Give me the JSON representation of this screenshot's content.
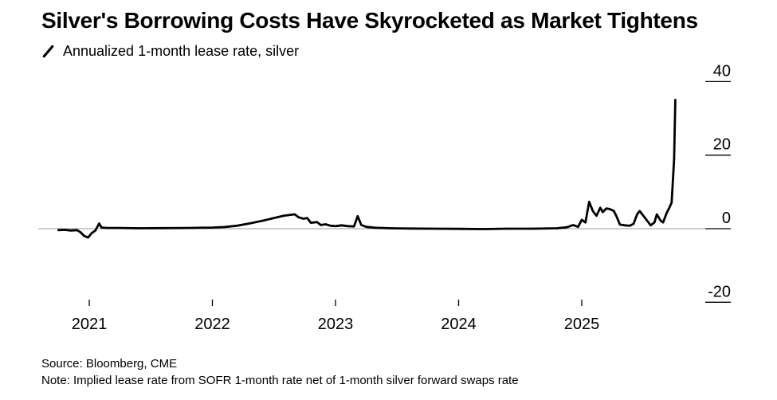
{
  "page": {
    "title": "Silver's Borrowing Costs Have Skyrocketed as Market Tightens"
  },
  "legend": {
    "marker_icon": "line-slash-icon",
    "label": "Annualized 1-month lease rate, silver"
  },
  "footer": {
    "source": "Source: Bloomberg, CME",
    "note": "Note: Implied lease rate from SOFR 1-month rate net of 1-month silver forward swaps rate"
  },
  "colors": {
    "line": "#000000",
    "zero_line": "#9b9b9b",
    "tick": "#000000",
    "text": "#000000",
    "background": "#ffffff"
  },
  "chart_data": {
    "type": "line",
    "title": "Silver's Borrowing Costs Have Skyrocketed as Market Tightens",
    "subtitle": "Annualized 1-month lease rate, silver",
    "xlabel": "",
    "ylabel": "",
    "x_ticks": [
      2021,
      2022,
      2023,
      2024,
      2025
    ],
    "y_ticks": [
      40,
      20,
      0,
      -20
    ],
    "ylim": [
      -29,
      45
    ],
    "x_domain": [
      2020.72,
      2025.82
    ],
    "grid": "zero-line-only",
    "y_axis_side": "right",
    "legend_position": "top-left",
    "series": [
      {
        "name": "Annualized 1-month lease rate, silver",
        "color": "#000000",
        "points": [
          [
            2020.75,
            -0.4
          ],
          [
            2020.8,
            -0.3
          ],
          [
            2020.85,
            -0.5
          ],
          [
            2020.9,
            -0.4
          ],
          [
            2020.93,
            -1.0
          ],
          [
            2020.96,
            -2.0
          ],
          [
            2020.99,
            -2.4
          ],
          [
            2021.02,
            -1.2
          ],
          [
            2021.05,
            -0.5
          ],
          [
            2021.08,
            1.4
          ],
          [
            2021.1,
            0.3
          ],
          [
            2021.15,
            0.2
          ],
          [
            2021.25,
            0.2
          ],
          [
            2021.4,
            0.1
          ],
          [
            2021.6,
            0.15
          ],
          [
            2021.8,
            0.2
          ],
          [
            2022.0,
            0.3
          ],
          [
            2022.1,
            0.45
          ],
          [
            2022.2,
            0.8
          ],
          [
            2022.3,
            1.4
          ],
          [
            2022.4,
            2.1
          ],
          [
            2022.5,
            2.9
          ],
          [
            2022.58,
            3.5
          ],
          [
            2022.64,
            3.8
          ],
          [
            2022.67,
            3.9
          ],
          [
            2022.7,
            3.1
          ],
          [
            2022.74,
            2.7
          ],
          [
            2022.77,
            2.9
          ],
          [
            2022.8,
            1.6
          ],
          [
            2022.85,
            1.8
          ],
          [
            2022.88,
            1.0
          ],
          [
            2022.92,
            1.2
          ],
          [
            2022.96,
            0.8
          ],
          [
            2023.0,
            0.7
          ],
          [
            2023.05,
            0.9
          ],
          [
            2023.1,
            0.7
          ],
          [
            2023.15,
            0.6
          ],
          [
            2023.18,
            3.4
          ],
          [
            2023.21,
            1.0
          ],
          [
            2023.25,
            0.5
          ],
          [
            2023.32,
            0.25
          ],
          [
            2023.45,
            0.1
          ],
          [
            2023.6,
            0.05
          ],
          [
            2023.8,
            0.0
          ],
          [
            2024.0,
            -0.05
          ],
          [
            2024.2,
            -0.1
          ],
          [
            2024.4,
            0.0
          ],
          [
            2024.6,
            0.0
          ],
          [
            2024.8,
            0.1
          ],
          [
            2024.88,
            0.4
          ],
          [
            2024.93,
            1.0
          ],
          [
            2024.97,
            0.5
          ],
          [
            2025.0,
            2.4
          ],
          [
            2025.03,
            1.7
          ],
          [
            2025.06,
            7.3
          ],
          [
            2025.09,
            4.8
          ],
          [
            2025.12,
            3.5
          ],
          [
            2025.15,
            5.7
          ],
          [
            2025.17,
            4.5
          ],
          [
            2025.2,
            5.5
          ],
          [
            2025.23,
            5.3
          ],
          [
            2025.26,
            4.8
          ],
          [
            2025.28,
            3.5
          ],
          [
            2025.31,
            1.1
          ],
          [
            2025.35,
            0.9
          ],
          [
            2025.39,
            0.8
          ],
          [
            2025.42,
            1.3
          ],
          [
            2025.45,
            3.9
          ],
          [
            2025.47,
            4.8
          ],
          [
            2025.5,
            3.5
          ],
          [
            2025.53,
            2.2
          ],
          [
            2025.56,
            0.9
          ],
          [
            2025.59,
            1.7
          ],
          [
            2025.61,
            3.9
          ],
          [
            2025.64,
            2.2
          ],
          [
            2025.66,
            1.7
          ],
          [
            2025.69,
            4.3
          ],
          [
            2025.71,
            5.6
          ],
          [
            2025.73,
            7.1
          ],
          [
            2025.75,
            19.0
          ],
          [
            2025.76,
            35.0
          ]
        ]
      }
    ]
  }
}
